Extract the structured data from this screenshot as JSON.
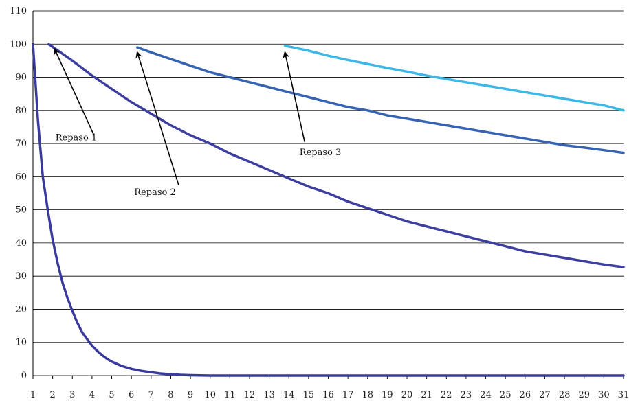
{
  "chart_data": {
    "type": "line",
    "title": "",
    "xlabel": "",
    "ylabel": "",
    "xlim": [
      1,
      31
    ],
    "ylim": [
      0,
      110
    ],
    "grid": true,
    "x_ticks": [
      1,
      2,
      3,
      4,
      5,
      6,
      7,
      8,
      9,
      10,
      11,
      12,
      13,
      14,
      15,
      16,
      17,
      18,
      19,
      20,
      21,
      22,
      23,
      24,
      25,
      26,
      27,
      28,
      29,
      30,
      31
    ],
    "y_ticks": [
      0,
      10,
      20,
      30,
      40,
      50,
      60,
      70,
      80,
      90,
      100,
      110
    ],
    "series": [
      {
        "color": "#3a3a9c",
        "x": [
          1,
          1.25,
          1.5,
          1.75,
          2,
          2.25,
          2.5,
          2.75,
          3,
          3.25,
          3.5,
          3.75,
          4,
          4.25,
          4.5,
          4.75,
          5,
          5.5,
          6,
          6.5,
          7,
          7.5,
          8,
          8.5,
          9,
          10,
          12,
          15,
          20,
          25,
          31
        ],
        "y": [
          100,
          77,
          60,
          50,
          41,
          34,
          28,
          23.5,
          19.5,
          16,
          13,
          11,
          9,
          7.5,
          6.2,
          5.1,
          4.2,
          2.9,
          2.0,
          1.4,
          1.0,
          0.6,
          0.4,
          0.2,
          0.1,
          0,
          0,
          0,
          0,
          0,
          0
        ]
      },
      {
        "color": "#3c3ea0",
        "x": [
          1.8,
          3,
          4,
          5,
          6,
          7,
          8,
          9,
          10,
          11,
          12,
          13,
          14,
          15,
          16,
          17,
          18,
          19,
          20,
          21,
          22,
          23,
          24,
          25,
          26,
          27,
          28,
          29,
          30,
          31
        ],
        "y": [
          100,
          95,
          90.5,
          86.5,
          82.5,
          79,
          75.5,
          72.5,
          70,
          67,
          64.5,
          62,
          59.5,
          57,
          55,
          52.5,
          50.5,
          48.5,
          46.5,
          45,
          43.5,
          42,
          40.5,
          39,
          37.5,
          36.5,
          35.5,
          34.5,
          33.5,
          32.7
        ]
      },
      {
        "color": "#3563b2",
        "x": [
          6.3,
          7,
          8,
          9,
          10,
          11,
          12,
          13,
          14,
          15,
          16,
          17,
          18,
          19,
          20,
          21,
          22,
          23,
          24,
          25,
          26,
          27,
          28,
          29,
          30,
          31
        ],
        "y": [
          99,
          97.5,
          95.5,
          93.5,
          91.5,
          90,
          88.5,
          87,
          85.5,
          84,
          82.5,
          81,
          80,
          78.5,
          77.5,
          76.5,
          75.5,
          74.5,
          73.5,
          72.5,
          71.5,
          70.5,
          69.5,
          68.8,
          68,
          67.2
        ]
      },
      {
        "color": "#3db8e6",
        "x": [
          13.8,
          15,
          16,
          17,
          18,
          19,
          20,
          21,
          22,
          23,
          24,
          25,
          26,
          27,
          28,
          29,
          30,
          31
        ],
        "y": [
          99.5,
          98,
          96.5,
          95.2,
          94,
          92.8,
          91.7,
          90.5,
          89.5,
          88.5,
          87.5,
          86.5,
          85.5,
          84.5,
          83.5,
          82.5,
          81.5,
          80
        ]
      }
    ],
    "annotations": [
      {
        "text": "Repaso 1",
        "x": 3.2,
        "y": 71,
        "arrow_from": [
          4.1,
          72.5
        ],
        "arrow_to": [
          2.1,
          98.5
        ]
      },
      {
        "text": "Repaso 2",
        "x": 7.2,
        "y": 54.5,
        "arrow_from": [
          8.4,
          57.5
        ],
        "arrow_to": [
          6.3,
          97.5
        ]
      },
      {
        "text": "Repaso 3",
        "x": 15.6,
        "y": 66.5,
        "arrow_from": [
          14.8,
          70.5
        ],
        "arrow_to": [
          13.8,
          97.5
        ]
      }
    ]
  }
}
